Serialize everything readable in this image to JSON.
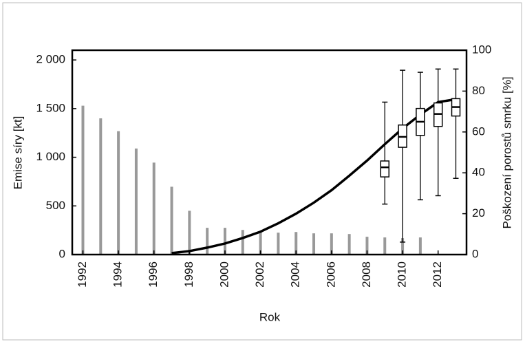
{
  "chart_data": {
    "type": "bar_line_box",
    "xlabel": "Rok",
    "ylabel": "Emise síry [kt]",
    "y2label": "Poškození porostů smrku [%]",
    "xlim": [
      1991.4,
      2013.6
    ],
    "xticks": [
      1992,
      1994,
      1996,
      1998,
      2000,
      2002,
      2004,
      2006,
      2008,
      2010,
      2012
    ],
    "ylim": [
      0,
      2100
    ],
    "yticks": [
      0,
      {
        "value": 500,
        "label": "500"
      },
      {
        "value": 1000,
        "label": "1 000"
      },
      {
        "value": 1500,
        "label": "1 500"
      },
      {
        "value": 2000,
        "label": "2 000"
      }
    ],
    "y2lim": [
      0,
      100
    ],
    "y2ticks": [
      0,
      20,
      40,
      60,
      80,
      100
    ],
    "bars": {
      "color": "#999999",
      "x": [
        1992,
        1993,
        1994,
        1995,
        1996,
        1997,
        1998,
        1999,
        2000,
        2001,
        2002,
        2003,
        2004,
        2005,
        2006,
        2007,
        2008,
        2009,
        2010,
        2011
      ],
      "values": [
        1530,
        1400,
        1268,
        1090,
        945,
        697,
        450,
        275,
        275,
        253,
        232,
        225,
        232,
        218,
        218,
        211,
        183,
        176,
        169,
        176
      ]
    },
    "line": {
      "color": "#000000",
      "axis": "y2",
      "x": [
        1997,
        1998,
        1999,
        2000,
        2001,
        2002,
        2003,
        2004,
        2005,
        2006,
        2007,
        2008,
        2009,
        2010,
        2011,
        2012,
        2013
      ],
      "values": [
        0.7,
        1.7,
        3.4,
        5.4,
        8.1,
        11.2,
        15.3,
        20,
        25.4,
        31.5,
        38.6,
        46,
        54,
        61.7,
        68.5,
        74.6,
        76
      ]
    },
    "boxes": {
      "axis": "y2",
      "x": [
        2009,
        2010,
        2011,
        2012,
        2013
      ],
      "max": [
        74.6,
        90.2,
        89.2,
        90.8,
        90.8
      ],
      "q3": [
        45.8,
        63.4,
        71.5,
        74.2,
        76.3
      ],
      "median": [
        42.7,
        57.6,
        65,
        68.8,
        72.2
      ],
      "q1": [
        38,
        52.5,
        58.3,
        62.7,
        67.8
      ],
      "min": [
        24.7,
        6.1,
        26.8,
        28.8,
        37.3
      ]
    }
  }
}
